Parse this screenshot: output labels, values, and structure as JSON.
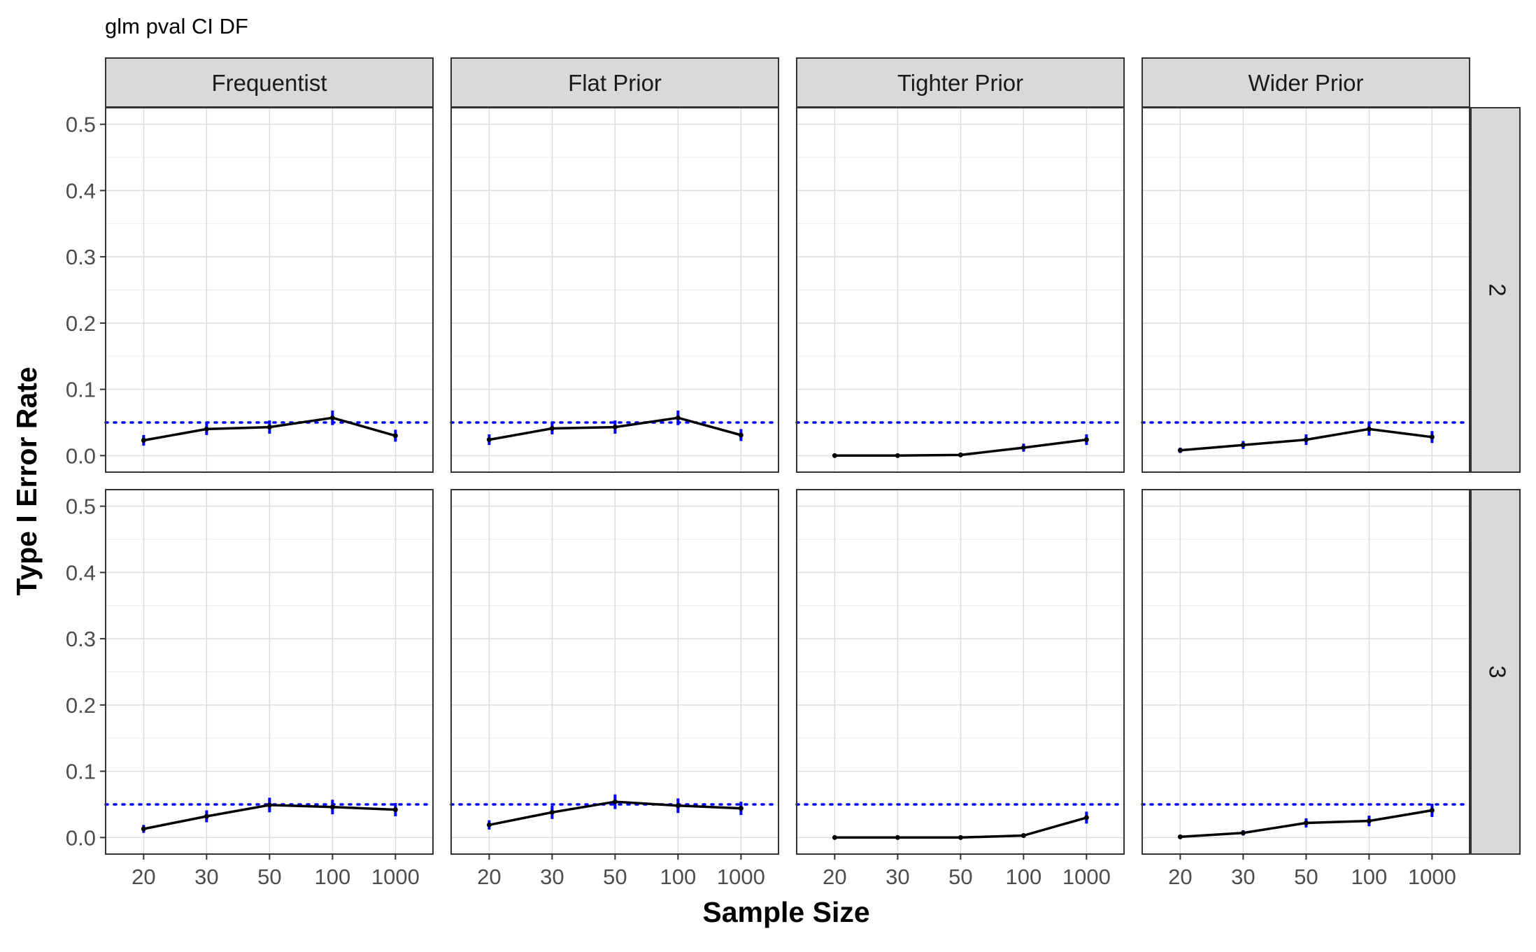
{
  "title": "glm pval CI DF",
  "xlabel": "Sample Size",
  "ylabel": "Type I Error Rate",
  "colors": {
    "line": "#000000",
    "error_bar": "#0000ff",
    "reference_line": "#0000ff",
    "strip_fill": "#d9d9d9",
    "panel_border": "#333333",
    "grid": "#ebebeb"
  },
  "chart_data": {
    "type": "line",
    "facet_columns": [
      "Frequentist",
      "Flat Prior",
      "Tighter Prior",
      "Wider Prior"
    ],
    "facet_rows": [
      "2",
      "3"
    ],
    "x_categories": [
      "20",
      "30",
      "50",
      "100",
      "1000"
    ],
    "y_ticks": [
      "0.0",
      "0.1",
      "0.2",
      "0.3",
      "0.4",
      "0.5"
    ],
    "ylim": [
      -0.025,
      0.525
    ],
    "reference_line": 0.05,
    "grid": true,
    "panels": [
      {
        "column": "Frequentist",
        "row": "2",
        "y": [
          0.023,
          0.04,
          0.043,
          0.057,
          0.03
        ],
        "ci": [
          0.008,
          0.009,
          0.01,
          0.011,
          0.009
        ]
      },
      {
        "column": "Flat Prior",
        "row": "2",
        "y": [
          0.024,
          0.041,
          0.043,
          0.057,
          0.031
        ],
        "ci": [
          0.008,
          0.009,
          0.01,
          0.011,
          0.009
        ]
      },
      {
        "column": "Tighter Prior",
        "row": "2",
        "y": [
          0.0,
          0.0,
          0.001,
          0.012,
          0.024
        ],
        "ci": [
          0.0,
          0.0,
          0.001,
          0.006,
          0.008
        ]
      },
      {
        "column": "Wider Prior",
        "row": "2",
        "y": [
          0.008,
          0.016,
          0.024,
          0.04,
          0.028
        ],
        "ci": [
          0.004,
          0.006,
          0.008,
          0.01,
          0.009
        ]
      },
      {
        "column": "Frequentist",
        "row": "3",
        "y": [
          0.013,
          0.032,
          0.049,
          0.046,
          0.042
        ],
        "ci": [
          0.006,
          0.009,
          0.011,
          0.011,
          0.01
        ]
      },
      {
        "column": "Flat Prior",
        "row": "3",
        "y": [
          0.019,
          0.038,
          0.054,
          0.048,
          0.044
        ],
        "ci": [
          0.007,
          0.01,
          0.011,
          0.011,
          0.01
        ]
      },
      {
        "column": "Tighter Prior",
        "row": "3",
        "y": [
          0.0,
          0.0,
          0.0,
          0.003,
          0.03
        ],
        "ci": [
          0.0,
          0.0,
          0.0,
          0.002,
          0.009
        ]
      },
      {
        "column": "Wider Prior",
        "row": "3",
        "y": [
          0.001,
          0.007,
          0.022,
          0.025,
          0.041
        ],
        "ci": [
          0.001,
          0.004,
          0.007,
          0.008,
          0.01
        ]
      }
    ]
  }
}
